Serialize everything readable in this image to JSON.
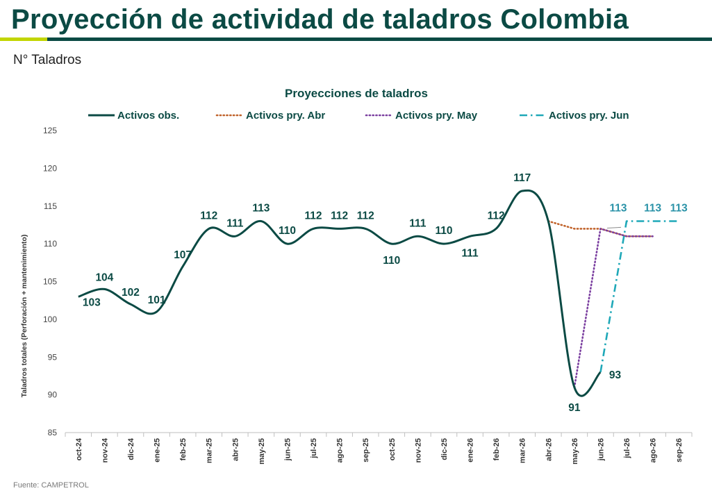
{
  "page": {
    "title": "Proyección de actividad de taladros Colombia",
    "subtitle": "N° Taladros",
    "source": "Fuente: CAMPETROL"
  },
  "colors": {
    "brand": "#0b4a44",
    "accent": "#c2d500"
  },
  "chart_data": {
    "type": "line",
    "title": "Proyecciones de taladros",
    "xlabel": "",
    "ylabel": "Taladros totales (Perforación + mantenimiento)",
    "ylim": [
      85,
      125
    ],
    "yticks": [
      85,
      90,
      95,
      100,
      105,
      110,
      115,
      120,
      125
    ],
    "grid": false,
    "legend_position": "top",
    "categories": [
      "oct-24",
      "nov-24",
      "dic-24",
      "ene-25",
      "feb-25",
      "mar-25",
      "abr-25",
      "may-25",
      "jun-25",
      "jul-25",
      "ago-25",
      "sep-25",
      "oct-25",
      "nov-25",
      "dic-25",
      "ene-26",
      "feb-26",
      "mar-26",
      "abr-26",
      "may-26",
      "jun-26",
      "jul-26",
      "ago-26",
      "sep-26"
    ],
    "series": [
      {
        "name": "Activos obs.",
        "color": "#0b4a44",
        "style": "solid",
        "values": [
          103,
          104,
          102,
          101,
          107,
          112,
          111,
          113,
          110,
          112,
          112,
          112,
          110,
          111,
          110,
          111,
          112,
          117,
          113,
          91,
          93,
          null,
          null,
          null
        ]
      },
      {
        "name": "Activos pry. Abr",
        "color": "#c0622a",
        "style": "dotted",
        "values": [
          null,
          null,
          null,
          null,
          null,
          null,
          null,
          null,
          null,
          null,
          null,
          null,
          null,
          null,
          null,
          null,
          null,
          null,
          113,
          112,
          112,
          111,
          111,
          null
        ]
      },
      {
        "name": "Activos pry. May",
        "color": "#7b3fa0",
        "style": "dotted",
        "values": [
          null,
          null,
          null,
          null,
          null,
          null,
          null,
          null,
          null,
          null,
          null,
          null,
          null,
          null,
          null,
          null,
          null,
          null,
          null,
          91,
          112,
          111,
          111,
          null
        ]
      },
      {
        "name": "Activos pry. Jun",
        "color": "#1fa8b8",
        "style": "dashdot",
        "values": [
          null,
          null,
          null,
          null,
          null,
          null,
          null,
          null,
          null,
          null,
          null,
          null,
          null,
          null,
          null,
          null,
          null,
          null,
          null,
          null,
          93,
          113,
          113,
          113
        ]
      }
    ],
    "data_labels": [
      {
        "category": "oct-24",
        "text": "103"
      },
      {
        "category": "nov-24",
        "text": "104"
      },
      {
        "category": "dic-24",
        "text": "102"
      },
      {
        "category": "ene-25",
        "text": "101"
      },
      {
        "category": "feb-25",
        "text": "107"
      },
      {
        "category": "mar-25",
        "text": "112"
      },
      {
        "category": "abr-25",
        "text": "111"
      },
      {
        "category": "may-25",
        "text": "113"
      },
      {
        "category": "jun-25",
        "text": "110"
      },
      {
        "category": "jul-25",
        "text": "112"
      },
      {
        "category": "ago-25",
        "text": "112"
      },
      {
        "category": "sep-25",
        "text": "112"
      },
      {
        "category": "oct-25",
        "text": "110"
      },
      {
        "category": "nov-25",
        "text": "111"
      },
      {
        "category": "dic-25",
        "text": "110"
      },
      {
        "category": "ene-26",
        "text": "111"
      },
      {
        "category": "feb-26",
        "text": "112"
      },
      {
        "category": "mar-26",
        "text": "117"
      },
      {
        "category": "may-26",
        "text": "91"
      },
      {
        "category": "jun-26",
        "text": "93"
      },
      {
        "category": "jul-26",
        "text": "113"
      },
      {
        "category": "ago-26",
        "text": "113"
      },
      {
        "category": "sep-26",
        "text": "113"
      }
    ]
  }
}
